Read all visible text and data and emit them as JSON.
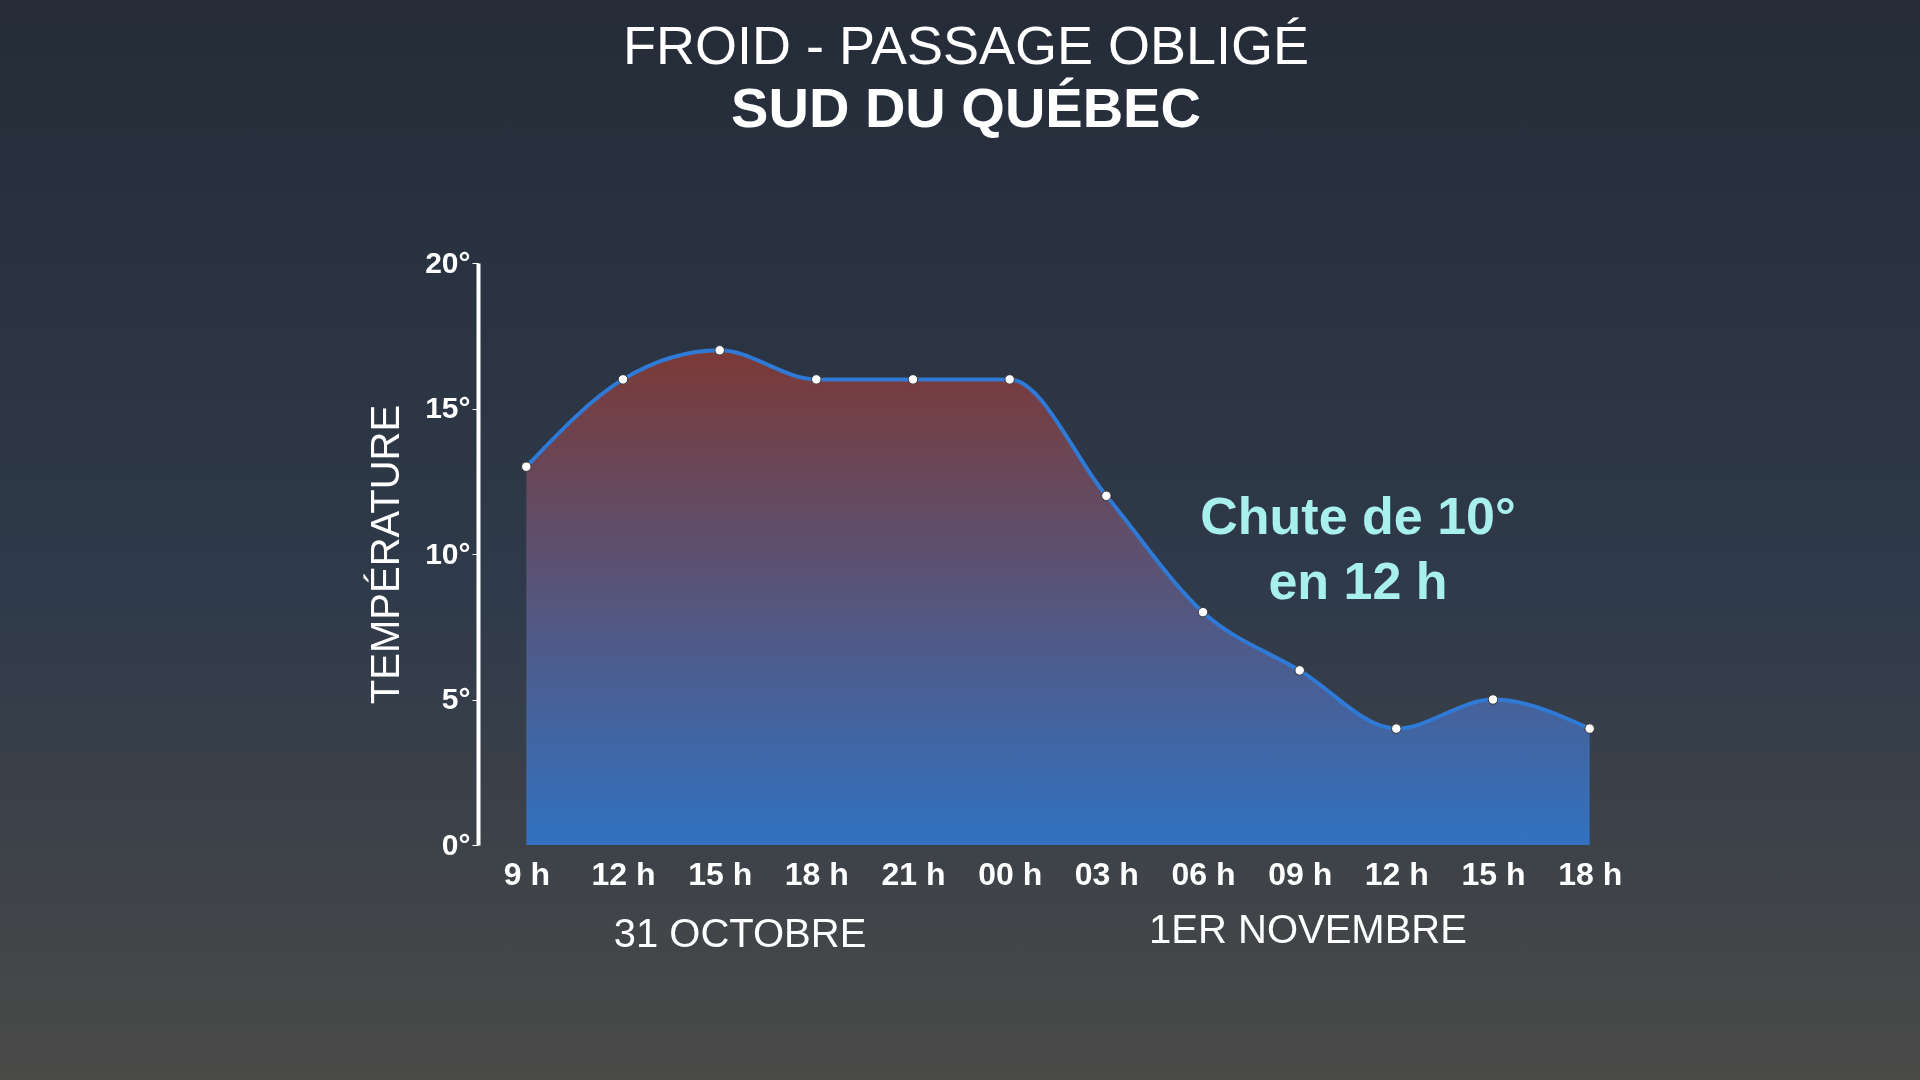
{
  "chart_data": {
    "type": "area",
    "title": "FROID - PASSAGE OBLIGÉ",
    "subtitle": "SUD DU QUÉBEC",
    "ylabel": "TEMPÉRATURE",
    "categories": [
      "9 h",
      "12 h",
      "15 h",
      "18 h",
      "21 h",
      "00 h",
      "03 h",
      "06 h",
      "09 h",
      "12 h",
      "15 h",
      "18 h"
    ],
    "series": [
      {
        "color": "#2f7ad6",
        "values": [
          13,
          16,
          17,
          16,
          16,
          16,
          12,
          8,
          6,
          4,
          5,
          4
        ]
      }
    ],
    "ylim": [
      0,
      20
    ],
    "yticks": [
      {
        "value": 0,
        "label": "0°"
      },
      {
        "value": 5,
        "label": "5°"
      },
      {
        "value": 10,
        "label": "10°"
      },
      {
        "value": 15,
        "label": "15°"
      },
      {
        "value": 20,
        "label": "20°"
      }
    ],
    "marker": "circle",
    "grid": false,
    "annotations": [
      "Chute de 10°\nen 12 h",
      "31 OCTOBRE",
      "1ER NOVEMBRE"
    ]
  }
}
